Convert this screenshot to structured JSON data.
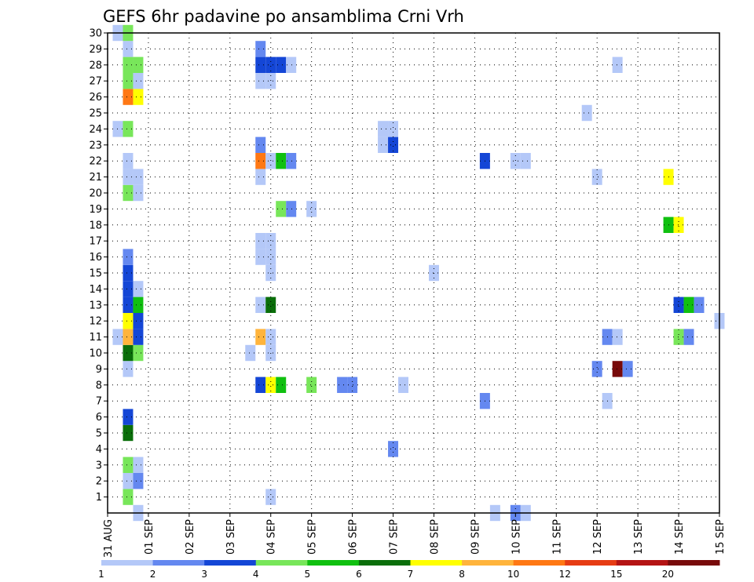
{
  "chart_data": {
    "type": "heatmap",
    "title": "GEFS 6hr padavine po ansamblima Crni Vrh",
    "xlabel": "",
    "ylabel": "",
    "x_ticks": [
      "31 AUG",
      "01 SEP",
      "02 SEP",
      "03 SEP",
      "04 SEP",
      "05 SEP",
      "06 SEP",
      "07 SEP",
      "08 SEP",
      "09 SEP",
      "10 SEP",
      "11 SEP",
      "12 SEP",
      "13 SEP",
      "14 SEP",
      "15 SEP"
    ],
    "xlim_days": [
      0,
      15
    ],
    "y_ticks": [
      1,
      2,
      3,
      4,
      5,
      6,
      7,
      8,
      9,
      10,
      11,
      12,
      13,
      14,
      15,
      16,
      17,
      18,
      19,
      20,
      21,
      22,
      23,
      24,
      25,
      26,
      27,
      28,
      29,
      30
    ],
    "ylim": [
      0,
      30
    ],
    "grid": true,
    "colorbar": {
      "levels": [
        "1",
        "2",
        "3",
        "4",
        "5",
        "6",
        "7",
        "8",
        "10",
        "12",
        "15",
        "20"
      ],
      "colors": [
        "#b4c8f8",
        "#6488f0",
        "#1446d6",
        "#78e65a",
        "#10c010",
        "#0a6e0a",
        "#ffff00",
        "#ffb43c",
        "#ff7814",
        "#e63c14",
        "#b41414",
        "#780a0a"
      ]
    },
    "cells": [
      {
        "member": 1,
        "day": 0.5,
        "bin": 4
      },
      {
        "member": 1,
        "day": 4.0,
        "bin": 1
      },
      {
        "member": 2,
        "day": 0.5,
        "bin": 1
      },
      {
        "member": 2,
        "day": 0.75,
        "bin": 2
      },
      {
        "member": 3,
        "day": 0.5,
        "bin": 4
      },
      {
        "member": 3,
        "day": 0.75,
        "bin": 1
      },
      {
        "member": 4,
        "day": 7.0,
        "bin": 2
      },
      {
        "member": 5,
        "day": 0.5,
        "bin": 6
      },
      {
        "member": 6,
        "day": 0.5,
        "bin": 3
      },
      {
        "member": 7,
        "day": 9.25,
        "bin": 2
      },
      {
        "member": 7,
        "day": 12.25,
        "bin": 1
      },
      {
        "member": 8,
        "day": 3.75,
        "bin": 3
      },
      {
        "member": 8,
        "day": 4.0,
        "bin": 7
      },
      {
        "member": 8,
        "day": 4.25,
        "bin": 5
      },
      {
        "member": 8,
        "day": 5.0,
        "bin": 4
      },
      {
        "member": 8,
        "day": 5.75,
        "bin": 2
      },
      {
        "member": 8,
        "day": 6.0,
        "bin": 2
      },
      {
        "member": 8,
        "day": 7.25,
        "bin": 1
      },
      {
        "member": 9,
        "day": 0.5,
        "bin": 1
      },
      {
        "member": 9,
        "day": 12.0,
        "bin": 2
      },
      {
        "member": 9,
        "day": 12.5,
        "bin": 12
      },
      {
        "member": 9,
        "day": 12.75,
        "bin": 2
      },
      {
        "member": 10,
        "day": 0.5,
        "bin": 6
      },
      {
        "member": 10,
        "day": 0.75,
        "bin": 4
      },
      {
        "member": 10,
        "day": 3.5,
        "bin": 1
      },
      {
        "member": 10,
        "day": 4.0,
        "bin": 1
      },
      {
        "member": 11,
        "day": 0.25,
        "bin": 1
      },
      {
        "member": 11,
        "day": 0.5,
        "bin": 8
      },
      {
        "member": 11,
        "day": 0.75,
        "bin": 3
      },
      {
        "member": 11,
        "day": 3.75,
        "bin": 8
      },
      {
        "member": 11,
        "day": 4.0,
        "bin": 1
      },
      {
        "member": 11,
        "day": 12.25,
        "bin": 2
      },
      {
        "member": 11,
        "day": 12.5,
        "bin": 1
      },
      {
        "member": 11,
        "day": 14.0,
        "bin": 4
      },
      {
        "member": 11,
        "day": 14.25,
        "bin": 2
      },
      {
        "member": 12,
        "day": 0.5,
        "bin": 7
      },
      {
        "member": 12,
        "day": 0.75,
        "bin": 3
      },
      {
        "member": 12,
        "day": 15.0,
        "bin": 1
      },
      {
        "member": 13,
        "day": 0.5,
        "bin": 3
      },
      {
        "member": 13,
        "day": 0.75,
        "bin": 5
      },
      {
        "member": 13,
        "day": 3.75,
        "bin": 1
      },
      {
        "member": 13,
        "day": 4.0,
        "bin": 6
      },
      {
        "member": 13,
        "day": 14.0,
        "bin": 3
      },
      {
        "member": 13,
        "day": 14.25,
        "bin": 5
      },
      {
        "member": 13,
        "day": 14.5,
        "bin": 2
      },
      {
        "member": 14,
        "day": 0.5,
        "bin": 3
      },
      {
        "member": 14,
        "day": 0.75,
        "bin": 1
      },
      {
        "member": 15,
        "day": 0.5,
        "bin": 3
      },
      {
        "member": 15,
        "day": 4.0,
        "bin": 1
      },
      {
        "member": 15,
        "day": 8.0,
        "bin": 1
      },
      {
        "member": 16,
        "day": 0.5,
        "bin": 2
      },
      {
        "member": 16,
        "day": 3.75,
        "bin": 1
      },
      {
        "member": 16,
        "day": 4.0,
        "bin": 1
      },
      {
        "member": 17,
        "day": 3.75,
        "bin": 1
      },
      {
        "member": 17,
        "day": 4.0,
        "bin": 1
      },
      {
        "member": 18,
        "day": 13.75,
        "bin": 5
      },
      {
        "member": 18,
        "day": 14.0,
        "bin": 7
      },
      {
        "member": 19,
        "day": 4.25,
        "bin": 4
      },
      {
        "member": 19,
        "day": 4.5,
        "bin": 2
      },
      {
        "member": 19,
        "day": 5.0,
        "bin": 1
      },
      {
        "member": 20,
        "day": 0.5,
        "bin": 4
      },
      {
        "member": 20,
        "day": 0.75,
        "bin": 1
      },
      {
        "member": 21,
        "day": 0.5,
        "bin": 1
      },
      {
        "member": 21,
        "day": 0.75,
        "bin": 1
      },
      {
        "member": 21,
        "day": 3.75,
        "bin": 1
      },
      {
        "member": 21,
        "day": 12.0,
        "bin": 1
      },
      {
        "member": 21,
        "day": 13.75,
        "bin": 7
      },
      {
        "member": 22,
        "day": 0.5,
        "bin": 1
      },
      {
        "member": 22,
        "day": 3.75,
        "bin": 9
      },
      {
        "member": 22,
        "day": 4.0,
        "bin": 1
      },
      {
        "member": 22,
        "day": 4.25,
        "bin": 5
      },
      {
        "member": 22,
        "day": 4.5,
        "bin": 2
      },
      {
        "member": 22,
        "day": 9.25,
        "bin": 3
      },
      {
        "member": 22,
        "day": 10.0,
        "bin": 1
      },
      {
        "member": 22,
        "day": 10.25,
        "bin": 1
      },
      {
        "member": 23,
        "day": 3.75,
        "bin": 2
      },
      {
        "member": 23,
        "day": 6.75,
        "bin": 1
      },
      {
        "member": 23,
        "day": 7.0,
        "bin": 3
      },
      {
        "member": 24,
        "day": 0.25,
        "bin": 1
      },
      {
        "member": 24,
        "day": 0.5,
        "bin": 4
      },
      {
        "member": 24,
        "day": 6.75,
        "bin": 1
      },
      {
        "member": 24,
        "day": 7.0,
        "bin": 1
      },
      {
        "member": 25,
        "day": 11.75,
        "bin": 1
      },
      {
        "member": 26,
        "day": 0.5,
        "bin": 9
      },
      {
        "member": 26,
        "day": 0.75,
        "bin": 7
      },
      {
        "member": 27,
        "day": 0.5,
        "bin": 4
      },
      {
        "member": 27,
        "day": 0.75,
        "bin": 1
      },
      {
        "member": 27,
        "day": 3.75,
        "bin": 1
      },
      {
        "member": 27,
        "day": 4.0,
        "bin": 1
      },
      {
        "member": 28,
        "day": 0.5,
        "bin": 4
      },
      {
        "member": 28,
        "day": 0.75,
        "bin": 4
      },
      {
        "member": 28,
        "day": 3.75,
        "bin": 3
      },
      {
        "member": 28,
        "day": 4.0,
        "bin": 3
      },
      {
        "member": 28,
        "day": 4.25,
        "bin": 3
      },
      {
        "member": 28,
        "day": 4.5,
        "bin": 1
      },
      {
        "member": 28,
        "day": 12.5,
        "bin": 1
      },
      {
        "member": 29,
        "day": 0.5,
        "bin": 1
      },
      {
        "member": 29,
        "day": 3.75,
        "bin": 2
      },
      {
        "member": 30,
        "day": 0.25,
        "bin": 1
      },
      {
        "member": 30,
        "day": 0.5,
        "bin": 4
      },
      {
        "member": 0,
        "day": 0.75,
        "bin": 1
      },
      {
        "member": 0,
        "day": 9.5,
        "bin": 1
      },
      {
        "member": 0,
        "day": 10.0,
        "bin": 2
      },
      {
        "member": 0,
        "day": 10.25,
        "bin": 1
      }
    ]
  }
}
